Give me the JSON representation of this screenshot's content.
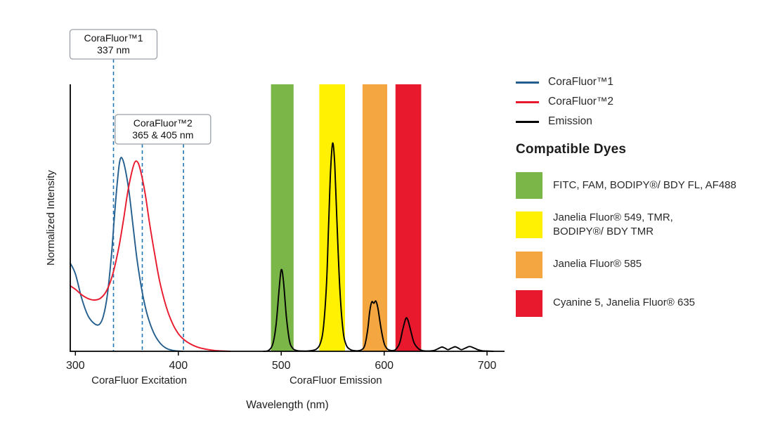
{
  "legend": {
    "series": [
      {
        "label": "CoraFluor™1",
        "color": "#235e8e"
      },
      {
        "label": "CoraFluor™2",
        "color": "#e8192c"
      },
      {
        "label": "Emission",
        "color": "#000000"
      }
    ],
    "dyes_heading": "Compatible Dyes",
    "dyes": [
      {
        "label": "FITC, FAM, BODIPY®/ BDY FL, AF488",
        "color": "#7ab648"
      },
      {
        "label": "Janelia Fluor® 549, TMR,\nBODIPY®/ BDY TMR",
        "color": "#fff101"
      },
      {
        "label": "Janelia Fluor® 585",
        "color": "#f4a640"
      },
      {
        "label": "Cyanine 5, Janelia Fluor® 635",
        "color": "#e8192c"
      }
    ],
    "position": "right"
  },
  "chart_data": {
    "type": "line",
    "title": "",
    "xlabel": "Wavelength (nm)",
    "ylabel": "Normalized Intensity",
    "xlim": [
      295,
      717
    ],
    "ylim": [
      0,
      1
    ],
    "x_ticks": [
      300,
      400,
      500,
      600,
      700
    ],
    "grid": false,
    "dash_color": "#2477b4",
    "axis_color": "#000000",
    "section_labels": [
      {
        "label": "CoraFluor Excitation",
        "center_nm": 362
      },
      {
        "label": "CoraFluor Emission",
        "center_nm": 553
      }
    ],
    "annotations": [
      {
        "title": "CoraFluor™1",
        "subtitle": "337 nm",
        "lines_nm": [
          337
        ]
      },
      {
        "title": "CoraFluor™2",
        "subtitle": "365 & 405 nm",
        "lines_nm": [
          365,
          405
        ]
      }
    ],
    "bands": [
      {
        "name": "green-filter",
        "range_nm": [
          490,
          512
        ],
        "color": "#7ab648",
        "dyes": "FITC, FAM, BODIPY®/ BDY FL, AF488"
      },
      {
        "name": "yellow-filter",
        "range_nm": [
          537,
          562
        ],
        "color": "#fff101",
        "dyes": "Janelia Fluor® 549, TMR, BODIPY®/ BDY TMR"
      },
      {
        "name": "orange-filter",
        "range_nm": [
          579,
          603
        ],
        "color": "#f4a640",
        "dyes": "Janelia Fluor® 585"
      },
      {
        "name": "red-filter",
        "range_nm": [
          611,
          636
        ],
        "color": "#e8192c",
        "dyes": "Cyanine 5, Janelia Fluor® 635"
      }
    ],
    "series": [
      {
        "name": "CoraFluor™1 excitation",
        "color": "#235e8e",
        "points": [
          [
            295,
            0.33
          ],
          [
            300,
            0.29
          ],
          [
            306,
            0.2
          ],
          [
            312,
            0.135
          ],
          [
            318,
            0.105
          ],
          [
            323,
            0.1
          ],
          [
            327,
            0.13
          ],
          [
            331,
            0.21
          ],
          [
            335,
            0.36
          ],
          [
            338,
            0.51
          ],
          [
            341,
            0.645
          ],
          [
            343,
            0.71
          ],
          [
            345,
            0.725
          ],
          [
            348,
            0.69
          ],
          [
            352,
            0.6
          ],
          [
            356,
            0.47
          ],
          [
            360,
            0.34
          ],
          [
            365,
            0.22
          ],
          [
            370,
            0.135
          ],
          [
            376,
            0.07
          ],
          [
            382,
            0.032
          ],
          [
            388,
            0.012
          ],
          [
            394,
            0.004
          ],
          [
            400,
            0.001
          ],
          [
            404,
            0
          ]
        ]
      },
      {
        "name": "CoraFluor™2 excitation",
        "color": "#e8192c",
        "points": [
          [
            295,
            0.245
          ],
          [
            300,
            0.232
          ],
          [
            306,
            0.212
          ],
          [
            312,
            0.198
          ],
          [
            318,
            0.192
          ],
          [
            324,
            0.198
          ],
          [
            330,
            0.225
          ],
          [
            336,
            0.285
          ],
          [
            342,
            0.385
          ],
          [
            347,
            0.5
          ],
          [
            351,
            0.6
          ],
          [
            355,
            0.675
          ],
          [
            358,
            0.71
          ],
          [
            361,
            0.705
          ],
          [
            364,
            0.665
          ],
          [
            368,
            0.585
          ],
          [
            372,
            0.48
          ],
          [
            377,
            0.365
          ],
          [
            382,
            0.26
          ],
          [
            388,
            0.17
          ],
          [
            394,
            0.107
          ],
          [
            400,
            0.066
          ],
          [
            406,
            0.042
          ],
          [
            413,
            0.025
          ],
          [
            420,
            0.014
          ],
          [
            428,
            0.007
          ],
          [
            436,
            0.003
          ],
          [
            444,
            0.001
          ],
          [
            450,
            0
          ]
        ]
      },
      {
        "name": "Emission",
        "color": "#000000",
        "points": [
          [
            483,
            0
          ],
          [
            488,
            0.004
          ],
          [
            492,
            0.03
          ],
          [
            495,
            0.1
          ],
          [
            498,
            0.235
          ],
          [
            500,
            0.305
          ],
          [
            502,
            0.27
          ],
          [
            505,
            0.13
          ],
          [
            508,
            0.04
          ],
          [
            511,
            0.012
          ],
          [
            515,
            0.003
          ],
          [
            521,
            0.001
          ],
          [
            528,
            0.002
          ],
          [
            534,
            0.008
          ],
          [
            538,
            0.03
          ],
          [
            541,
            0.09
          ],
          [
            544,
            0.25
          ],
          [
            546,
            0.47
          ],
          [
            548,
            0.68
          ],
          [
            550,
            0.78
          ],
          [
            552,
            0.7
          ],
          [
            554,
            0.5
          ],
          [
            557,
            0.23
          ],
          [
            560,
            0.08
          ],
          [
            563,
            0.025
          ],
          [
            567,
            0.007
          ],
          [
            572,
            0.002
          ],
          [
            577,
            0.004
          ],
          [
            581,
            0.02
          ],
          [
            584,
            0.08
          ],
          [
            586,
            0.15
          ],
          [
            588,
            0.185
          ],
          [
            590,
            0.18
          ],
          [
            592,
            0.188
          ],
          [
            594,
            0.16
          ],
          [
            597,
            0.085
          ],
          [
            600,
            0.03
          ],
          [
            603,
            0.009
          ],
          [
            607,
            0.003
          ],
          [
            611,
            0.006
          ],
          [
            615,
            0.03
          ],
          [
            618,
            0.08
          ],
          [
            621,
            0.122
          ],
          [
            623,
            0.118
          ],
          [
            626,
            0.075
          ],
          [
            629,
            0.033
          ],
          [
            633,
            0.011
          ],
          [
            637,
            0.003
          ],
          [
            642,
            0.001
          ],
          [
            648,
            0.003
          ],
          [
            652,
            0.009
          ],
          [
            656,
            0.016
          ],
          [
            659,
            0.012
          ],
          [
            662,
            0.006
          ],
          [
            665,
            0.011
          ],
          [
            669,
            0.017
          ],
          [
            672,
            0.012
          ],
          [
            675,
            0.006
          ],
          [
            679,
            0.012
          ],
          [
            683,
            0.018
          ],
          [
            687,
            0.013
          ],
          [
            691,
            0.006
          ],
          [
            695,
            0.002
          ],
          [
            700,
            0.001
          ],
          [
            706,
            0
          ]
        ]
      }
    ]
  }
}
